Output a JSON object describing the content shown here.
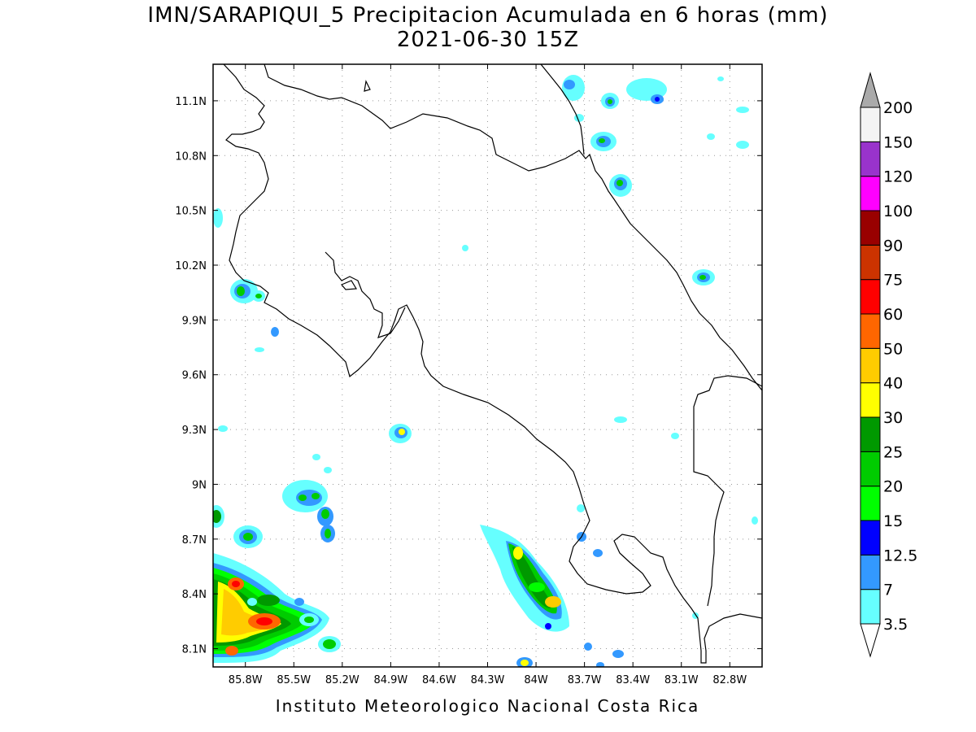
{
  "title": {
    "line1": "IMN/SARAPIQUI_5 Precipitacion Acumulada en 6 horas (mm)",
    "line2": "2021-06-30 15Z"
  },
  "footer": "Instituto Meteorologico Nacional Costa Rica",
  "map": {
    "lon_range": [
      -86.0,
      -82.6
    ],
    "lat_range": [
      8.0,
      11.3
    ],
    "lat_ticks": [
      "11.1N",
      "10.8N",
      "10.5N",
      "10.2N",
      "9.9N",
      "9.6N",
      "9.3N",
      "9N",
      "8.7N",
      "8.4N",
      "8.1N"
    ],
    "lon_ticks": [
      "85.8W",
      "85.5W",
      "85.2W",
      "84.9W",
      "84.6W",
      "84.3W",
      "84W",
      "83.7W",
      "83.4W",
      "83.1W",
      "82.8W"
    ],
    "grid": true
  },
  "colorbar": {
    "levels": [
      "3.5",
      "7",
      "12.5",
      "15",
      "20",
      "25",
      "30",
      "40",
      "50",
      "60",
      "75",
      "90",
      "100",
      "120",
      "150",
      "200"
    ],
    "colors": [
      "#66ffff",
      "#3399ff",
      "#0000ff",
      "#00ff00",
      "#00cc00",
      "#009900",
      "#ffff00",
      "#ffcc00",
      "#ff6600",
      "#ff0000",
      "#cc3300",
      "#990000",
      "#ff00ff",
      "#9933cc",
      "#f4f4f4",
      "#aaaaaa"
    ]
  }
}
